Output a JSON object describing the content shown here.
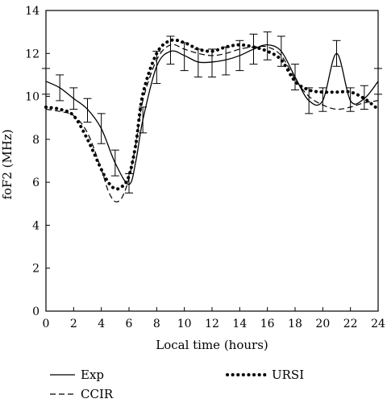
{
  "chart_data": {
    "type": "line",
    "title": "",
    "xlabel": "Local time (hours)",
    "ylabel": "foF2 (MHz)",
    "xlim": [
      0,
      24
    ],
    "ylim": [
      0,
      14
    ],
    "xticks": [
      0,
      2,
      4,
      6,
      8,
      10,
      12,
      14,
      16,
      18,
      20,
      22,
      24
    ],
    "yticks": [
      0,
      2,
      4,
      6,
      8,
      10,
      12,
      14
    ],
    "grid": false,
    "legend_position": "bottom",
    "series": [
      {
        "name": "Exp",
        "style": "solid",
        "x": [
          0,
          1,
          2,
          3,
          4,
          5,
          6,
          6.5,
          7,
          8,
          9,
          10,
          11,
          12,
          13,
          14,
          15,
          16,
          17,
          18,
          19,
          20,
          21,
          22,
          23,
          24
        ],
        "y": [
          10.7,
          10.4,
          9.9,
          9.4,
          8.5,
          6.9,
          5.9,
          7.0,
          8.9,
          11.4,
          12.1,
          11.9,
          11.6,
          11.6,
          11.7,
          11.9,
          12.2,
          12.4,
          12.1,
          10.9,
          9.8,
          9.8,
          12.0,
          9.8,
          9.9,
          10.7
        ],
        "error_bars": [
          {
            "x": 0,
            "low": 10.1,
            "high": 11.3
          },
          {
            "x": 1,
            "low": 9.8,
            "high": 11.0
          },
          {
            "x": 2,
            "low": 9.4,
            "high": 10.4
          },
          {
            "x": 3,
            "low": 8.8,
            "high": 9.9
          },
          {
            "x": 4,
            "low": 7.8,
            "high": 9.2
          },
          {
            "x": 5,
            "low": 6.3,
            "high": 7.5
          },
          {
            "x": 6,
            "low": 5.5,
            "high": 6.4
          },
          {
            "x": 7,
            "low": 8.3,
            "high": 9.5
          },
          {
            "x": 8,
            "low": 10.6,
            "high": 12.1
          },
          {
            "x": 9,
            "low": 11.5,
            "high": 12.8
          },
          {
            "x": 10,
            "low": 11.2,
            "high": 12.5
          },
          {
            "x": 11,
            "low": 10.9,
            "high": 12.2
          },
          {
            "x": 12,
            "low": 10.9,
            "high": 12.2
          },
          {
            "x": 13,
            "low": 11.0,
            "high": 12.3
          },
          {
            "x": 14,
            "low": 11.2,
            "high": 12.6
          },
          {
            "x": 15,
            "low": 11.5,
            "high": 12.9
          },
          {
            "x": 16,
            "low": 11.7,
            "high": 13.0
          },
          {
            "x": 17,
            "low": 11.4,
            "high": 12.8
          },
          {
            "x": 18,
            "low": 10.3,
            "high": 11.5
          },
          {
            "x": 19,
            "low": 9.2,
            "high": 10.4
          },
          {
            "x": 20,
            "low": 9.3,
            "high": 10.4
          },
          {
            "x": 21,
            "low": 11.4,
            "high": 12.6
          },
          {
            "x": 22,
            "low": 9.3,
            "high": 10.4
          },
          {
            "x": 23,
            "low": 9.4,
            "high": 10.5
          },
          {
            "x": 24,
            "low": 10.1,
            "high": 11.3
          }
        ]
      },
      {
        "name": "CCIR",
        "style": "dashed",
        "x": [
          0,
          1,
          2,
          3,
          4,
          4.5,
          5,
          5.5,
          6,
          6.5,
          7,
          8,
          9,
          10,
          11,
          12,
          13,
          14,
          15,
          16,
          17,
          18,
          19,
          20,
          21,
          22,
          23,
          24
        ],
        "y": [
          9.4,
          9.3,
          9.1,
          8.3,
          6.6,
          5.6,
          5.1,
          5.3,
          6.2,
          7.8,
          9.8,
          11.7,
          12.4,
          12.2,
          12.0,
          11.9,
          12.0,
          12.2,
          12.3,
          12.3,
          11.9,
          10.8,
          10.0,
          9.6,
          9.4,
          9.5,
          9.7,
          9.8
        ]
      },
      {
        "name": "URSI",
        "style": "dotted",
        "x": [
          0,
          1,
          2,
          3,
          4,
          4.5,
          5,
          5.5,
          6,
          6.5,
          7,
          8,
          9,
          10,
          11,
          12,
          13,
          14,
          15,
          16,
          17,
          18,
          19,
          20,
          21,
          22,
          23,
          24
        ],
        "y": [
          9.5,
          9.4,
          9.1,
          8.0,
          6.6,
          6.0,
          5.7,
          5.8,
          6.3,
          7.8,
          10.1,
          12.0,
          12.6,
          12.5,
          12.2,
          12.1,
          12.3,
          12.4,
          12.3,
          12.1,
          11.7,
          10.7,
          10.3,
          10.2,
          10.2,
          10.2,
          9.9,
          9.4
        ]
      }
    ]
  }
}
